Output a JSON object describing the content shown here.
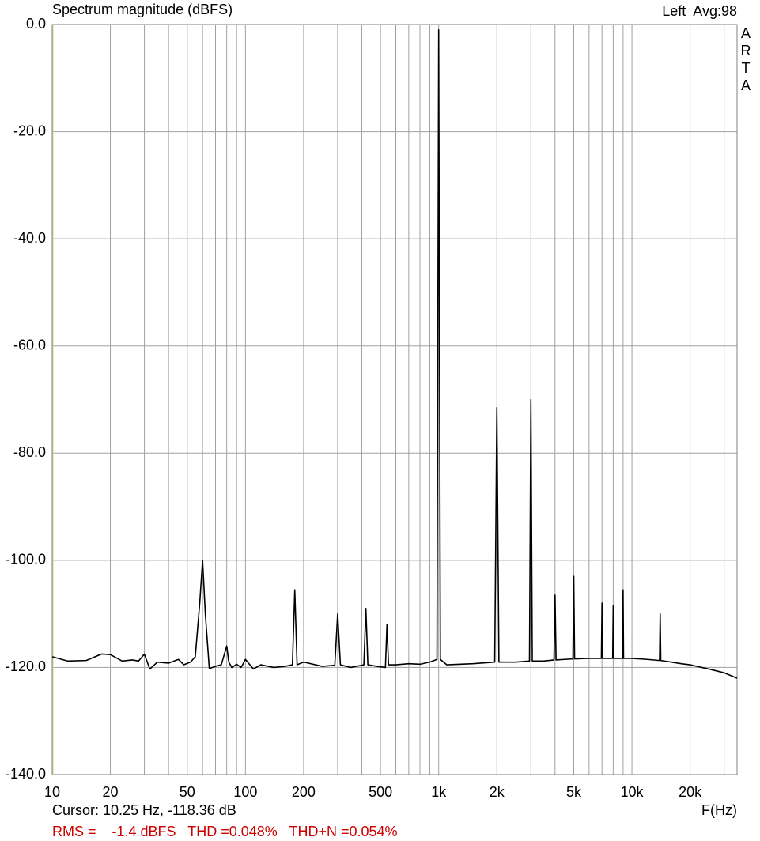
{
  "chart_data": {
    "type": "line",
    "title": "Spectrum magnitude (dBFS)",
    "channel_label": "Left  Avg:98",
    "brand": "ARTA",
    "x_label": "F(Hz)",
    "cursor_text": "Cursor: 10.25 Hz, -118.36 dB",
    "stats_text": "RMS =    -1.4 dBFS   THD =0.048%   THD+N =0.054%",
    "stats_color": "#cc0000",
    "xscale": "log",
    "grid": true,
    "xlim": [
      10,
      35000
    ],
    "ylim": [
      -140,
      0
    ],
    "xticks": [
      10,
      20,
      50,
      100,
      200,
      500,
      {
        "value": 1000,
        "label": "1k"
      },
      {
        "value": 2000,
        "label": "2k"
      },
      {
        "value": 5000,
        "label": "5k"
      },
      {
        "value": 10000,
        "label": "10k"
      },
      {
        "value": 20000,
        "label": "20k"
      }
    ],
    "xminorticks": [
      30,
      40,
      60,
      70,
      80,
      90,
      300,
      400,
      600,
      700,
      800,
      900,
      3000,
      4000,
      6000,
      7000,
      8000,
      9000,
      30000
    ],
    "yticks": [
      {
        "value": 0,
        "label": "0.0"
      },
      {
        "value": -20,
        "label": "-20.0"
      },
      {
        "value": -40,
        "label": "-40.0"
      },
      {
        "value": -60,
        "label": "-60.0"
      },
      {
        "value": -80,
        "label": "-80.0"
      },
      {
        "value": -100,
        "label": "-100.0"
      },
      {
        "value": -120,
        "label": "-120.0"
      },
      {
        "value": -140,
        "label": "-140.0"
      }
    ],
    "series": [
      {
        "color": "#000000",
        "x": [
          10,
          12,
          15,
          18,
          20,
          23,
          26,
          28,
          30,
          32,
          35,
          40,
          45,
          48,
          52,
          55,
          58,
          60,
          62,
          65,
          70,
          75,
          80,
          82,
          85,
          90,
          95,
          100,
          110,
          120,
          140,
          160,
          175,
          180,
          185,
          200,
          250,
          290,
          300,
          310,
          350,
          400,
          410,
          420,
          430,
          480,
          530,
          540,
          550,
          600,
          700,
          800,
          900,
          980,
          1000,
          1020,
          1100,
          1500,
          1950,
          2000,
          2050,
          2500,
          2950,
          3000,
          3050,
          3500,
          3950,
          4000,
          4050,
          4500,
          4950,
          5000,
          5050,
          6000,
          6950,
          7000,
          7050,
          7950,
          8000,
          8050,
          8950,
          9000,
          9050,
          10000,
          12000,
          13900,
          14000,
          14100,
          16000,
          18000,
          20000,
          25000,
          30000,
          35000
        ],
        "values": [
          -118,
          -118.8,
          -118.7,
          -117.5,
          -117.6,
          -118.8,
          -118.6,
          -118.8,
          -117.5,
          -120.3,
          -119,
          -119.2,
          -118.5,
          -119.5,
          -119,
          -118,
          -108,
          -100,
          -110,
          -120.2,
          -119.8,
          -119.5,
          -116,
          -119,
          -120,
          -119.4,
          -120,
          -118.5,
          -120.3,
          -119.5,
          -120,
          -119.8,
          -119.5,
          -105.5,
          -119.5,
          -119,
          -119.8,
          -119.6,
          -110,
          -119.5,
          -120,
          -119.6,
          -119.5,
          -109,
          -119.5,
          -119.8,
          -120,
          -112,
          -119.5,
          -119.5,
          -119.3,
          -119.4,
          -119,
          -118.5,
          -1,
          -118.5,
          -119.5,
          -119.3,
          -119,
          -71.5,
          -119,
          -119,
          -118.8,
          -70,
          -118.8,
          -118.8,
          -118.6,
          -106.5,
          -118.6,
          -118.5,
          -118.4,
          -103,
          -118.4,
          -118.3,
          -118.3,
          -108,
          -118.3,
          -118.3,
          -108.5,
          -118.3,
          -118.3,
          -105.5,
          -118.3,
          -118.3,
          -118.5,
          -118.7,
          -110,
          -118.7,
          -119,
          -119.3,
          -119.5,
          -120.3,
          -121,
          -122
        ]
      }
    ]
  }
}
